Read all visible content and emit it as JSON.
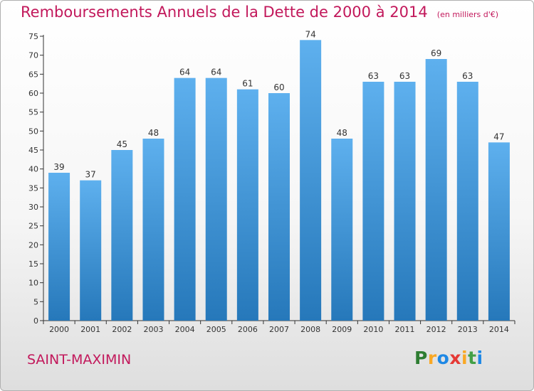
{
  "chart_data": {
    "type": "bar",
    "title": "Remboursements Annuels de la Dette de 2000 à 2014",
    "unit": "(en milliers d'€)",
    "categories": [
      "2000",
      "2001",
      "2002",
      "2003",
      "2004",
      "2005",
      "2006",
      "2007",
      "2008",
      "2009",
      "2010",
      "2011",
      "2012",
      "2013",
      "2014"
    ],
    "values": [
      39,
      37,
      45,
      48,
      64,
      64,
      61,
      60,
      74,
      48,
      63,
      63,
      69,
      63,
      47
    ],
    "ylim": [
      0,
      75
    ],
    "yticks": [
      0,
      5,
      10,
      15,
      20,
      25,
      30,
      35,
      40,
      45,
      50,
      55,
      60,
      65,
      70,
      75
    ],
    "grid": false,
    "xlabel": "",
    "ylabel": ""
  },
  "location": "SAINT-MAXIMIN",
  "brand": {
    "letters": [
      "P",
      "r",
      "o",
      "x",
      "i",
      "t",
      "i"
    ],
    "colors": [
      "#2e7d32",
      "#f9a825",
      "#1e88e5",
      "#e53935",
      "#f9a825",
      "#43a047",
      "#1e88e5"
    ]
  },
  "colors": {
    "title": "#c2185b",
    "bar_light": "#5eb0ee",
    "bar_dark": "#2678ba",
    "axis": "#333333"
  }
}
